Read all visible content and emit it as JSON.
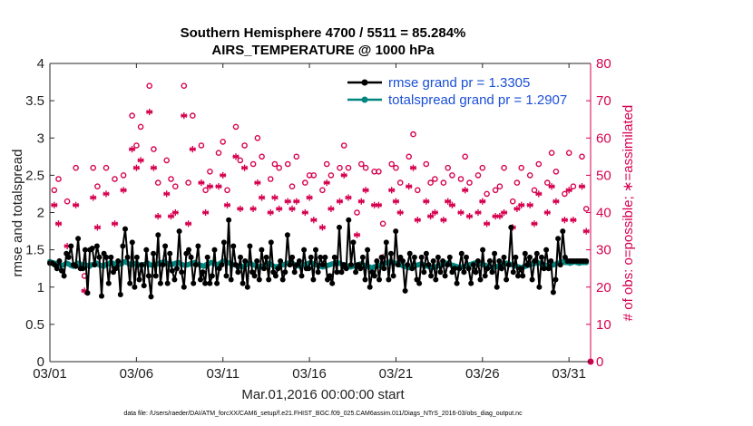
{
  "chart_data": {
    "type": "line",
    "title_line1": "Southern Hemisphere 4700 / 5511 = 85.284%",
    "title_line2": "AIRS_TEMPERATURE @ 1000 hPa",
    "xlabel": "Mar.01,2016 00:00:00 start",
    "ylabel_left": "rmse and totalspread",
    "ylabel_right": "# of obs: o=possible; ∗=assimilated",
    "x_ticks": [
      "03/01",
      "03/06",
      "03/11",
      "03/16",
      "03/21",
      "03/26",
      "03/31"
    ],
    "x_tick_days": [
      0,
      5,
      10,
      15,
      20,
      25,
      30
    ],
    "xlim_days": [
      0,
      31.25
    ],
    "y_left_ticks": [
      "0",
      "0.5",
      "1",
      "1.5",
      "2",
      "2.5",
      "3",
      "3.5",
      "4"
    ],
    "ylim_left": [
      0,
      4
    ],
    "y_right_ticks": [
      "0",
      "10",
      "20",
      "30",
      "40",
      "50",
      "60",
      "70",
      "80"
    ],
    "ylim_right": [
      0,
      80
    ],
    "footnote": "data file: /Users/raeder/DAI/ATM_forcXX/CAM6_setup/f.e21.FHIST_BGC.f09_025.CAM6assim.011/Diags_NTrS_2016-03/obs_diag_output.nc",
    "series": [
      {
        "name": "rmse grand pr = 1.3305",
        "color": "#000000",
        "marker": "dot",
        "values": [
          1.32,
          1.32,
          1.3,
          1.25,
          1.35,
          1.22,
          1.15,
          1.45,
          1.4,
          1.55,
          1.3,
          1.28,
          1.65,
          1.25,
          1.25,
          1.5,
          0.92,
          1.5,
          1.52,
          1.3,
          1.55,
          1.4,
          0.88,
          1.45,
          1.4,
          1.05,
          1.4,
          1.2,
          1.25,
          1.35,
          0.9,
          1.55,
          1.78,
          1.4,
          1.05,
          1.6,
          1.0,
          1.4,
          1.1,
          1.3,
          1.02,
          1.5,
          1.15,
          0.87,
          1.45,
          1.15,
          1.7,
          1.05,
          1.3,
          1.55,
          1.05,
          1.45,
          1.22,
          1.1,
          1.25,
          1.75,
          1.2,
          1.0,
          1.45,
          1.5,
          1.4,
          1.05,
          1.3,
          1.55,
          1.1,
          1.2,
          1.05,
          1.4,
          1.05,
          1.15,
          1.5,
          1.05,
          1.25,
          1.3,
          1.6,
          1.15,
          1.9,
          1.1,
          1.55,
          1.3,
          1.2,
          1.4,
          1.05,
          1.35,
          1.0,
          1.55,
          1.2,
          1.15,
          1.35,
          1.1,
          1.5,
          1.25,
          1.4,
          1.1,
          1.6,
          1.2,
          1.15,
          1.25,
          1.35,
          1.1,
          1.2,
          1.7,
          1.3,
          1.4,
          1.2,
          1.3,
          1.35,
          1.15,
          1.5,
          1.25,
          1.25,
          1.4,
          1.1,
          1.5,
          1.2,
          1.4,
          1.3,
          1.4,
          1.1,
          1.15,
          1.05,
          1.4,
          1.2,
          1.8,
          1.2,
          1.3,
          1.25,
          1.9,
          1.3,
          1.6,
          1.2,
          1.3,
          1.25,
          1.4,
          1.1,
          1.5,
          1.0,
          1.2,
          1.15,
          1.35,
          1.1,
          1.4,
          1.25,
          1.6,
          1.1,
          1.45,
          1.15,
          1.75,
          1.3,
          1.4,
          1.35,
          0.95,
          1.3,
          1.45,
          1.25,
          1.4,
          1.1,
          1.05,
          1.4,
          1.2,
          1.45,
          1.3,
          1.15,
          1.35,
          1.1,
          1.4,
          1.2,
          1.35,
          1.15,
          1.3,
          1.4,
          1.2,
          1.25,
          1.05,
          1.25,
          1.45,
          1.2,
          1.4,
          1.25,
          1.05,
          1.3,
          1.2,
          1.35,
          1.1,
          1.5,
          1.15,
          1.25,
          1.35,
          1.2,
          1.45,
          1.0,
          1.35,
          1.25,
          1.4,
          1.1,
          1.3,
          1.8,
          1.2,
          1.4,
          1.15,
          1.25,
          1.15,
          1.45,
          1.3,
          1.4,
          1.1,
          1.35,
          1.45,
          1.0,
          1.4,
          1.25,
          1.5,
          1.25,
          1.35,
          0.93,
          1.1,
          1.65,
          1.3,
          1.75,
          1.4,
          1.35,
          1.35,
          1.35,
          1.35,
          1.35,
          1.35,
          1.35,
          1.35,
          1.35
        ]
      },
      {
        "name": "totalspread grand pr = 1.2907",
        "color": "#00857f",
        "marker": "dot",
        "values": [
          1.34,
          1.33,
          1.32,
          1.3,
          1.31,
          1.29,
          1.3,
          1.32,
          1.31,
          1.29,
          1.28,
          1.3,
          1.32,
          1.31,
          1.29,
          1.3,
          1.29,
          1.28,
          1.3,
          1.31,
          1.32,
          1.3,
          1.29,
          1.28,
          1.3,
          1.31,
          1.33,
          1.32,
          1.3,
          1.29,
          1.31,
          1.32,
          1.34,
          1.33,
          1.31,
          1.3,
          1.31,
          1.32,
          1.3,
          1.29,
          1.3,
          1.31,
          1.32,
          1.3,
          1.29,
          1.3,
          1.31,
          1.32,
          1.33,
          1.34,
          1.32,
          1.31,
          1.3,
          1.31,
          1.32,
          1.33,
          1.31,
          1.3,
          1.29,
          1.3,
          1.31,
          1.32,
          1.33,
          1.31,
          1.3,
          1.29,
          1.28,
          1.3,
          1.31,
          1.33,
          1.32,
          1.31,
          1.3,
          1.32,
          1.34,
          1.35,
          1.33,
          1.32,
          1.31,
          1.3,
          1.29,
          1.28,
          1.27,
          1.28,
          1.3,
          1.31,
          1.32,
          1.3,
          1.29,
          1.28,
          1.27,
          1.28,
          1.29,
          1.31,
          1.32,
          1.3,
          1.28,
          1.27,
          1.28,
          1.29,
          1.3,
          1.31,
          1.32,
          1.33,
          1.32,
          1.3,
          1.29,
          1.28,
          1.29,
          1.3,
          1.31,
          1.32,
          1.33,
          1.31,
          1.3,
          1.29,
          1.28,
          1.27,
          1.28,
          1.29,
          1.3,
          1.31,
          1.32,
          1.33,
          1.32,
          1.31,
          1.3,
          1.29,
          1.28,
          1.27,
          1.28,
          1.29,
          1.3,
          1.31,
          1.3,
          1.29,
          1.28,
          1.27,
          1.26,
          1.27,
          1.28,
          1.29,
          1.3,
          1.31,
          1.32,
          1.33,
          1.34,
          1.33,
          1.32,
          1.31,
          1.3,
          1.29,
          1.28,
          1.27,
          1.26,
          1.27,
          1.28,
          1.29,
          1.3,
          1.31,
          1.3,
          1.29,
          1.28,
          1.27,
          1.26,
          1.27,
          1.28,
          1.29,
          1.3,
          1.31,
          1.32,
          1.31,
          1.3,
          1.29,
          1.28,
          1.27,
          1.26,
          1.27,
          1.28,
          1.29,
          1.3,
          1.31,
          1.32,
          1.33,
          1.32,
          1.31,
          1.3,
          1.29,
          1.28,
          1.27,
          1.26,
          1.27,
          1.28,
          1.29,
          1.3,
          1.31,
          1.32,
          1.31,
          1.3,
          1.29,
          1.28,
          1.27,
          1.26,
          1.27,
          1.28,
          1.29,
          1.3,
          1.31,
          1.32,
          1.33,
          1.32,
          1.31,
          1.3,
          1.29,
          1.28,
          1.29,
          1.3,
          1.31,
          1.32,
          1.33,
          1.34,
          1.33,
          1.33,
          1.32,
          1.33,
          1.34,
          1.33,
          1.32,
          1.33,
          1.33,
          1.33
        ]
      },
      {
        "name": "# of obs possible",
        "color": "#d6004f",
        "marker": "circle",
        "axis": "right",
        "x_days": [
          0.25,
          0.5,
          1.0,
          1.5,
          2.0,
          2.5,
          2.75,
          3.25,
          3.75,
          4.25,
          4.75,
          5.0,
          5.25,
          5.75,
          6.0,
          6.25,
          6.75,
          7.0,
          7.25,
          7.75,
          8.0,
          8.25,
          8.75,
          9.0,
          9.25,
          9.75,
          10.0,
          10.25,
          10.75,
          11.0,
          11.25,
          11.75,
          12.0,
          12.25,
          12.75,
          13.0,
          13.25,
          13.75,
          14.0,
          14.25,
          14.75,
          15.0,
          15.25,
          15.75,
          16.0,
          16.25,
          16.75,
          17.0,
          17.25,
          17.75,
          18.0,
          18.25,
          18.75,
          19.0,
          19.25,
          19.75,
          20.0,
          20.25,
          20.75,
          21.0,
          21.25,
          21.75,
          22.0,
          22.25,
          22.75,
          23.0,
          23.25,
          23.75,
          24.0,
          24.25,
          24.75,
          25.0,
          25.25,
          25.75,
          26.0,
          26.25,
          26.75,
          27.0,
          27.25,
          27.75,
          28.0,
          28.25,
          28.75,
          29.0,
          29.25,
          29.75,
          30.0,
          30.25,
          30.75,
          31.0
        ],
        "values": [
          46,
          49,
          43,
          52,
          23,
          52,
          47,
          52,
          49,
          50,
          66,
          58,
          63,
          74,
          57,
          48,
          54,
          49,
          47,
          74,
          48,
          66,
          58,
          46,
          51,
          56,
          59,
          46,
          63,
          54,
          58,
          53,
          60,
          55,
          49,
          53,
          52,
          53,
          47,
          55,
          48,
          50,
          50,
          46,
          53,
          50,
          52,
          58,
          52,
          40,
          53,
          52,
          51,
          51,
          37,
          53,
          52,
          48,
          55,
          61,
          46,
          53,
          48,
          49,
          48,
          52,
          50,
          49,
          55,
          48,
          50,
          52,
          45,
          46,
          47,
          52,
          43,
          48,
          52,
          50,
          46,
          53,
          48,
          56,
          51,
          45,
          56,
          47,
          55,
          41
        ]
      },
      {
        "name": "# of obs assimilated",
        "color": "#d6004f",
        "marker": "asterisk",
        "axis": "right",
        "x_days": [
          0.25,
          0.5,
          1.0,
          1.5,
          2.0,
          2.5,
          2.75,
          3.25,
          3.75,
          4.25,
          4.75,
          5.0,
          5.25,
          5.75,
          6.0,
          6.25,
          6.75,
          7.0,
          7.25,
          7.75,
          8.0,
          8.25,
          8.75,
          9.0,
          9.25,
          9.75,
          10.0,
          10.25,
          10.75,
          11.0,
          11.25,
          11.75,
          12.0,
          12.25,
          12.75,
          13.0,
          13.25,
          13.75,
          14.0,
          14.25,
          14.75,
          15.0,
          15.25,
          15.75,
          16.0,
          16.25,
          16.75,
          17.0,
          17.25,
          17.75,
          18.0,
          18.25,
          18.75,
          19.0,
          19.25,
          19.75,
          20.0,
          20.25,
          20.75,
          21.0,
          21.25,
          21.75,
          22.0,
          22.25,
          22.75,
          23.0,
          23.25,
          23.75,
          24.0,
          24.25,
          24.75,
          25.0,
          25.25,
          25.75,
          26.0,
          26.25,
          26.75,
          27.0,
          27.25,
          27.75,
          28.0,
          28.25,
          28.75,
          29.0,
          29.25,
          29.75,
          30.0,
          30.25,
          30.75,
          31.0
        ],
        "values": [
          42,
          37,
          31,
          42,
          19,
          44,
          36,
          45,
          37,
          46,
          57,
          52,
          54,
          67,
          52,
          39,
          45,
          39,
          40,
          66,
          37,
          57,
          48,
          40,
          47,
          47,
          50,
          42,
          55,
          41,
          52,
          41,
          48,
          44,
          40,
          44,
          41,
          43,
          41,
          43,
          40,
          44,
          38,
          36,
          48,
          41,
          43,
          50,
          44,
          34,
          43,
          46,
          42,
          42,
          28,
          46,
          43,
          40,
          47,
          52,
          38,
          43,
          39,
          40,
          38,
          43,
          42,
          40,
          46,
          39,
          40,
          43,
          37,
          39,
          39,
          40,
          36,
          41,
          42,
          42,
          37,
          45,
          40,
          47,
          43,
          38,
          46,
          38,
          47,
          35
        ]
      }
    ]
  }
}
